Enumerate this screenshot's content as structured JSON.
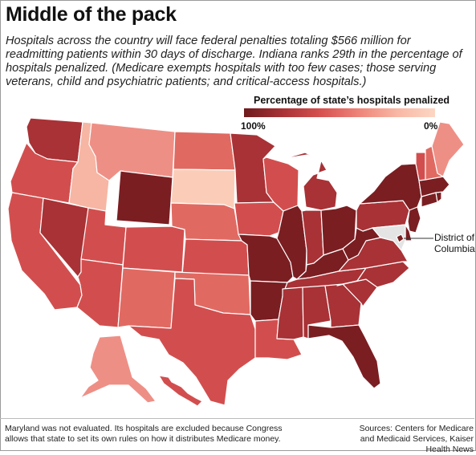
{
  "title": "Middle of the pack",
  "subtitle": "Hospitals across the country will face federal penalties totaling $566 million for readmitting patients within 30 days of discharge. Indiana ranks 29th in the percentage of hospitals penalized. (Medicare exempts hospitals with too few cases; those serving veterans, child and psychiatric patients; and critical-access hospitals.)",
  "legend": {
    "title": "Percentage of state’s hospitals penalized",
    "min_label": "100%",
    "max_label": "0%"
  },
  "dc_label": "District of Columbia",
  "footnote_left": "Maryland was not evaluated. Its hospitals are excluded because Congress allows that state to set its own rules on how it distributes Medicare money.",
  "footnote_right": "Sources: Centers for Medicare and Medicaid Services, Kaiser Health News",
  "colors": {
    "c1": "#7a1e22",
    "c2": "#a83236",
    "c3": "#d24e4e",
    "c4": "#e06a62",
    "c5": "#ee8f86",
    "c6": "#f6b6a3",
    "c7": "#fbcdb8",
    "md": "#e4e4e4"
  },
  "states": [
    {
      "name": "WA",
      "color": "c2"
    },
    {
      "name": "OR",
      "color": "c3"
    },
    {
      "name": "CA",
      "color": "c3"
    },
    {
      "name": "ID",
      "color": "c6"
    },
    {
      "name": "NV",
      "color": "c2"
    },
    {
      "name": "UT",
      "color": "c3"
    },
    {
      "name": "AZ",
      "color": "c3"
    },
    {
      "name": "MT",
      "color": "c5"
    },
    {
      "name": "WY",
      "color": "c1"
    },
    {
      "name": "CO",
      "color": "c3"
    },
    {
      "name": "NM",
      "color": "c4"
    },
    {
      "name": "ND",
      "color": "c4"
    },
    {
      "name": "SD",
      "color": "c7"
    },
    {
      "name": "NE",
      "color": "c4"
    },
    {
      "name": "KS",
      "color": "c3"
    },
    {
      "name": "OK",
      "color": "c4"
    },
    {
      "name": "TX",
      "color": "c3"
    },
    {
      "name": "MN",
      "color": "c2"
    },
    {
      "name": "IA",
      "color": "c3"
    },
    {
      "name": "MO",
      "color": "c1"
    },
    {
      "name": "AR",
      "color": "c1"
    },
    {
      "name": "LA",
      "color": "c3"
    },
    {
      "name": "WI",
      "color": "c3"
    },
    {
      "name": "IL",
      "color": "c1"
    },
    {
      "name": "MI",
      "color": "c2"
    },
    {
      "name": "IN",
      "color": "c2"
    },
    {
      "name": "OH",
      "color": "c1"
    },
    {
      "name": "KY",
      "color": "c1"
    },
    {
      "name": "TN",
      "color": "c2"
    },
    {
      "name": "MS",
      "color": "c2"
    },
    {
      "name": "AL",
      "color": "c2"
    },
    {
      "name": "GA",
      "color": "c2"
    },
    {
      "name": "FL",
      "color": "c1"
    },
    {
      "name": "SC",
      "color": "c2"
    },
    {
      "name": "NC",
      "color": "c2"
    },
    {
      "name": "VA",
      "color": "c2"
    },
    {
      "name": "WV",
      "color": "c1"
    },
    {
      "name": "PA",
      "color": "c2"
    },
    {
      "name": "NY",
      "color": "c1"
    },
    {
      "name": "NJ",
      "color": "c1"
    },
    {
      "name": "DE",
      "color": "c1"
    },
    {
      "name": "MD",
      "color": "md"
    },
    {
      "name": "DC",
      "color": "c1"
    },
    {
      "name": "CT",
      "color": "c1"
    },
    {
      "name": "RI",
      "color": "c1"
    },
    {
      "name": "MA",
      "color": "c1"
    },
    {
      "name": "VT",
      "color": "c3"
    },
    {
      "name": "NH",
      "color": "c4"
    },
    {
      "name": "ME",
      "color": "c5"
    },
    {
      "name": "AK",
      "color": "c5"
    },
    {
      "name": "HI",
      "color": "c3"
    }
  ]
}
